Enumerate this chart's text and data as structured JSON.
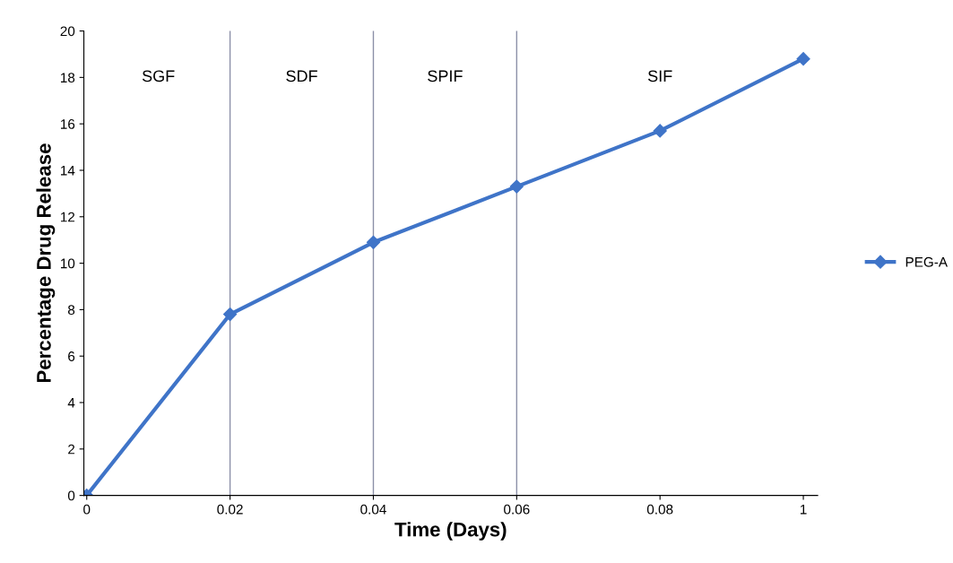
{
  "chart_data": {
    "type": "line",
    "xlabel": "Time (Days)",
    "ylabel": "Percentage Drug Release",
    "categories": [
      "0",
      "0.02",
      "0.04",
      "0.06",
      "0.08",
      "1"
    ],
    "series": [
      {
        "name": "PEG-A",
        "color": "#3f74c8",
        "values": [
          0,
          7.8,
          10.9,
          13.3,
          15.7,
          18.8
        ]
      }
    ],
    "ylim": [
      0,
      20
    ],
    "yticks": [
      0,
      2,
      4,
      6,
      8,
      10,
      12,
      14,
      16,
      18,
      20
    ],
    "ref_lines": [
      {
        "axis": "x",
        "value": "0.02",
        "color": "#8c90a8"
      },
      {
        "axis": "x",
        "value": "0.04",
        "color": "#8c90a8"
      },
      {
        "axis": "x",
        "value": "0.06",
        "color": "#8c90a8"
      }
    ],
    "annotations": [
      "SGF",
      "SDF",
      "SPIF",
      "SIF"
    ],
    "marker": "diamond",
    "line_style": "solid",
    "legend": "right",
    "grid": false
  }
}
